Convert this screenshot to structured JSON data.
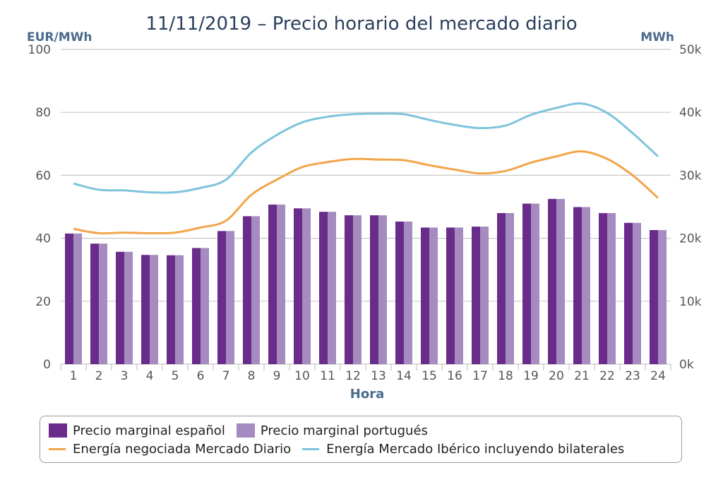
{
  "chart_data": {
    "type": "bar",
    "title": "11/11/2019 – Precio horario del mercado diario",
    "ylabel_left": "EUR/MWh",
    "ylabel_right": "MWh",
    "xlabel": "Hora",
    "ylim_left": [
      0,
      100
    ],
    "ylim_right": [
      0,
      50000
    ],
    "yticks_left": [
      "0",
      "20",
      "40",
      "60",
      "80",
      "100"
    ],
    "yticks_right": [
      "0k",
      "10k",
      "20k",
      "30k",
      "40k",
      "50k"
    ],
    "categories": [
      "1",
      "2",
      "3",
      "4",
      "5",
      "6",
      "7",
      "8",
      "9",
      "10",
      "11",
      "12",
      "13",
      "14",
      "15",
      "16",
      "17",
      "18",
      "19",
      "20",
      "21",
      "22",
      "23",
      "24"
    ],
    "grid": true,
    "legend_position": "bottom",
    "series": [
      {
        "name": "Precio marginal español",
        "kind": "bar",
        "axis": "left",
        "color": "#6a2c8a",
        "values": [
          41.5,
          38.3,
          35.7,
          34.7,
          34.6,
          36.9,
          42.3,
          47.0,
          50.7,
          49.5,
          48.4,
          47.3,
          47.3,
          45.3,
          43.4,
          43.4,
          43.7,
          48.0,
          51.0,
          52.5,
          49.9,
          48.0,
          44.9,
          42.6
        ]
      },
      {
        "name": "Precio marginal portugués",
        "kind": "bar",
        "axis": "left",
        "color": "#a58bbf",
        "values": [
          41.5,
          38.3,
          35.7,
          34.7,
          34.6,
          36.9,
          42.3,
          47.0,
          50.7,
          49.5,
          48.4,
          47.3,
          47.3,
          45.3,
          43.4,
          43.4,
          43.7,
          48.0,
          51.0,
          52.5,
          49.9,
          48.0,
          44.9,
          42.6
        ]
      },
      {
        "name": "Energía negociada Mercado Diario",
        "kind": "line",
        "axis": "right",
        "color": "#f2a54a",
        "values": [
          21500,
          20800,
          20900,
          20800,
          20900,
          21700,
          22800,
          26900,
          29300,
          31300,
          32100,
          32600,
          32500,
          32400,
          31600,
          30900,
          30300,
          30700,
          32000,
          33000,
          33800,
          32600,
          30000,
          26400
        ]
      },
      {
        "name": "Energía Mercado Ibérico incluyendo bilaterales",
        "kind": "line",
        "axis": "right",
        "color": "#7ec4dc",
        "values": [
          28700,
          27700,
          27600,
          27300,
          27300,
          28000,
          29300,
          33600,
          36400,
          38400,
          39300,
          39700,
          39800,
          39700,
          38800,
          38000,
          37500,
          37900,
          39600,
          40700,
          41400,
          39900,
          36700,
          33000
        ]
      }
    ]
  }
}
